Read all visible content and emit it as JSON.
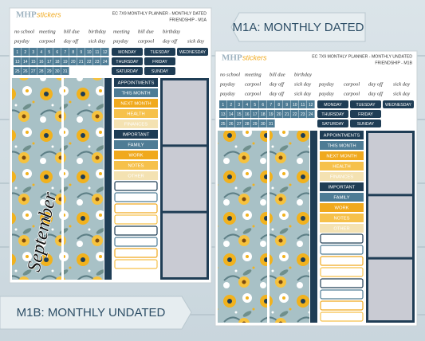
{
  "labels": {
    "dated": "M1A: MONTHLY DATED",
    "undated": "M1B: MONTHLY UNDATED"
  },
  "sheets": [
    {
      "logo": "MHP",
      "logo_accent": "stickers",
      "title": "EC 7X9 MONTHLY PLANNER - MONTHLY DATED",
      "code": "FRIENDSHIP - M1A",
      "word_rows": [
        [
          "no school",
          "meeting",
          "bill due",
          "birthday",
          "meeting",
          "bill due",
          "birthday"
        ],
        [
          "payday",
          "carpool",
          "day off",
          "sick day",
          "payday",
          "carpool",
          "day off",
          "sick day"
        ]
      ],
      "numbers": [
        1,
        2,
        3,
        4,
        5,
        6,
        7,
        8,
        9,
        10,
        11,
        12,
        13,
        14,
        15,
        16,
        17,
        18,
        19,
        20,
        21,
        22,
        23,
        24,
        25,
        26,
        27,
        28,
        29,
        30,
        31
      ],
      "days": [
        "MONDAY",
        "TUESDAY",
        "WEDNESDAY",
        "THURSDAY",
        "FRIDAY",
        "SATURDAY",
        "SUNDAY"
      ],
      "tabs": [
        "APPOINTMENTS",
        "THIS MONTH",
        "NEXT MONTH",
        "HEALTH",
        "FINANCES",
        "IMPORTANT",
        "FAMILY",
        "WORK",
        "NOTES",
        "OTHER"
      ],
      "script": "September"
    },
    {
      "logo": "MHP",
      "logo_accent": "stickers",
      "title": "EC 7X9 MONTHLY PLANNER - MONTHLY UNDATED",
      "code": "FRIENDSHIP - M1B",
      "word_rows": [
        [
          "no school",
          "meeting",
          "bill due",
          "birthday"
        ],
        [
          "payday",
          "carpool",
          "day off",
          "sick day",
          "payday",
          "carpool",
          "day off",
          "sick day"
        ],
        [
          "payday",
          "carpool",
          "day off",
          "sick day",
          "payday",
          "carpool",
          "day off",
          "sick day"
        ]
      ],
      "numbers": [
        1,
        2,
        3,
        4,
        5,
        6,
        7,
        8,
        9,
        10,
        11,
        12,
        13,
        14,
        15,
        16,
        17,
        18,
        19,
        20,
        21,
        22,
        23,
        24,
        25,
        26,
        27,
        28,
        29,
        30,
        31
      ],
      "days": [
        "MONDAY",
        "TUESDAY",
        "WEDNESDAY",
        "THURSDAY",
        "FRIDAY",
        "SATURDAY",
        "SUNDAY"
      ],
      "tabs": [
        "APPOINTMENTS",
        "THIS MONTH",
        "NEXT MONTH",
        "HEALTH",
        "FINANCES",
        "IMPORTANT",
        "FAMILY",
        "WORK",
        "NOTES",
        "OTHER"
      ]
    }
  ]
}
